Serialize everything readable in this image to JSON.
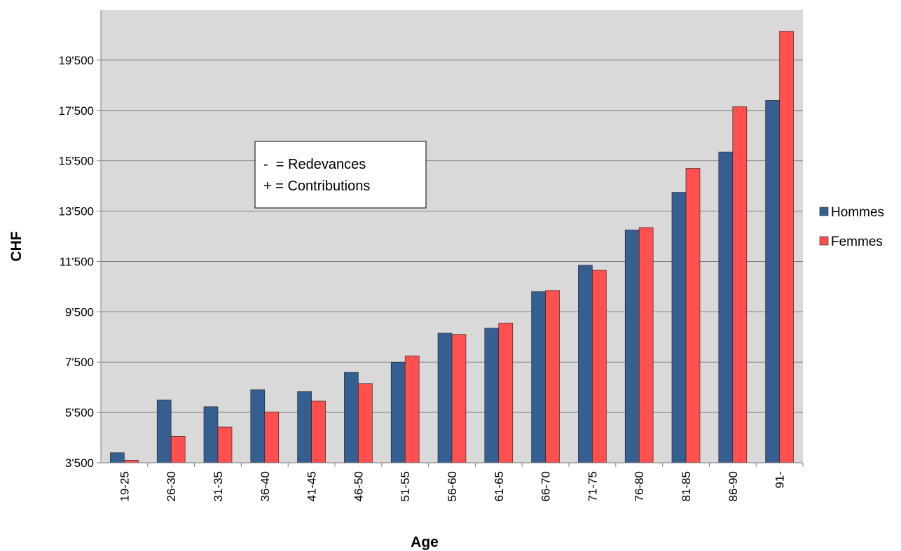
{
  "chart_data": {
    "type": "bar",
    "xlabel": "Age",
    "ylabel": "CHF",
    "categories": [
      "19-25",
      "26-30",
      "31-35",
      "36-40",
      "41-45",
      "46-50",
      "51-55",
      "56-60",
      "61-65",
      "66-70",
      "71-75",
      "76-80",
      "81-85",
      "86-90",
      "91-"
    ],
    "series": [
      {
        "name": "Hommes",
        "color": "#365f91",
        "values": [
          3900,
          6000,
          5730,
          6400,
          6330,
          7100,
          7500,
          8650,
          8850,
          10300,
          11350,
          12750,
          14250,
          15850,
          17900
        ]
      },
      {
        "name": "Femmes",
        "color": "#ff4f4f",
        "values": [
          3600,
          4550,
          4920,
          5520,
          5950,
          6650,
          7750,
          8600,
          9050,
          10350,
          11150,
          12850,
          15200,
          17650,
          20650
        ]
      }
    ],
    "ylim": [
      3500,
      21500
    ],
    "yticks": [
      3500,
      5500,
      7500,
      9500,
      11500,
      13500,
      15500,
      17500,
      19500
    ],
    "ytick_labels": [
      "3'500",
      "5'500",
      "7'500",
      "9'500",
      "11'500",
      "13'500",
      "15'500",
      "17'500",
      "19'500"
    ],
    "grid": true,
    "plot_background": "#d9d9d9",
    "legend_position": "right",
    "annotation": [
      "-  = Redevances",
      "+ = Contributions"
    ]
  }
}
